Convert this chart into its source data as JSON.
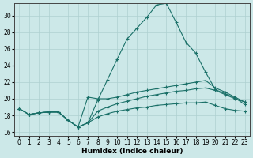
{
  "xlabel": "Humidex (Indice chaleur)",
  "xlim": [
    -0.5,
    23.5
  ],
  "ylim": [
    15.5,
    31.5
  ],
  "yticks": [
    16,
    18,
    20,
    22,
    24,
    26,
    28,
    30
  ],
  "xticks": [
    0,
    1,
    2,
    3,
    4,
    5,
    6,
    7,
    8,
    9,
    10,
    11,
    12,
    13,
    14,
    15,
    16,
    17,
    18,
    19,
    20,
    21,
    22,
    23
  ],
  "background_color": "#cce8e8",
  "grid_color": "#aed0d0",
  "line_color": "#1a7068",
  "lines": [
    {
      "x": [
        0,
        1,
        2,
        3,
        4,
        5,
        6,
        7,
        8,
        9,
        10,
        11,
        12,
        13,
        14,
        15,
        16,
        17,
        18,
        19,
        20,
        21,
        22,
        23
      ],
      "y": [
        18.8,
        18.1,
        18.3,
        18.4,
        18.4,
        17.4,
        16.6,
        17.1,
        19.8,
        22.3,
        24.8,
        27.2,
        28.5,
        29.8,
        31.3,
        31.5,
        29.2,
        26.8,
        25.5,
        23.2,
        21.1,
        20.6,
        20.1,
        19.3
      ]
    },
    {
      "x": [
        0,
        1,
        2,
        3,
        4,
        5,
        6,
        7,
        8,
        9,
        10,
        11,
        12,
        13,
        14,
        15,
        16,
        17,
        18,
        19,
        20,
        21,
        22,
        23
      ],
      "y": [
        18.8,
        18.1,
        18.3,
        18.4,
        18.4,
        17.4,
        16.6,
        20.2,
        20.0,
        20.0,
        20.2,
        20.5,
        20.8,
        21.0,
        21.2,
        21.4,
        21.6,
        21.8,
        22.0,
        22.2,
        21.3,
        20.8,
        20.2,
        19.6
      ]
    },
    {
      "x": [
        0,
        1,
        2,
        3,
        4,
        5,
        6,
        7,
        8,
        9,
        10,
        11,
        12,
        13,
        14,
        15,
        16,
        17,
        18,
        19,
        20,
        21,
        22,
        23
      ],
      "y": [
        18.8,
        18.1,
        18.3,
        18.4,
        18.4,
        17.4,
        16.6,
        17.1,
        18.5,
        19.0,
        19.4,
        19.7,
        20.0,
        20.3,
        20.5,
        20.7,
        20.9,
        21.0,
        21.2,
        21.3,
        21.0,
        20.5,
        20.0,
        19.6
      ]
    },
    {
      "x": [
        0,
        1,
        2,
        3,
        4,
        5,
        6,
        7,
        8,
        9,
        10,
        11,
        12,
        13,
        14,
        15,
        16,
        17,
        18,
        19,
        20,
        21,
        22,
        23
      ],
      "y": [
        18.8,
        18.1,
        18.3,
        18.4,
        18.4,
        17.4,
        16.6,
        17.1,
        17.8,
        18.2,
        18.5,
        18.7,
        18.9,
        19.0,
        19.2,
        19.3,
        19.4,
        19.5,
        19.5,
        19.6,
        19.2,
        18.8,
        18.6,
        18.5
      ]
    }
  ]
}
